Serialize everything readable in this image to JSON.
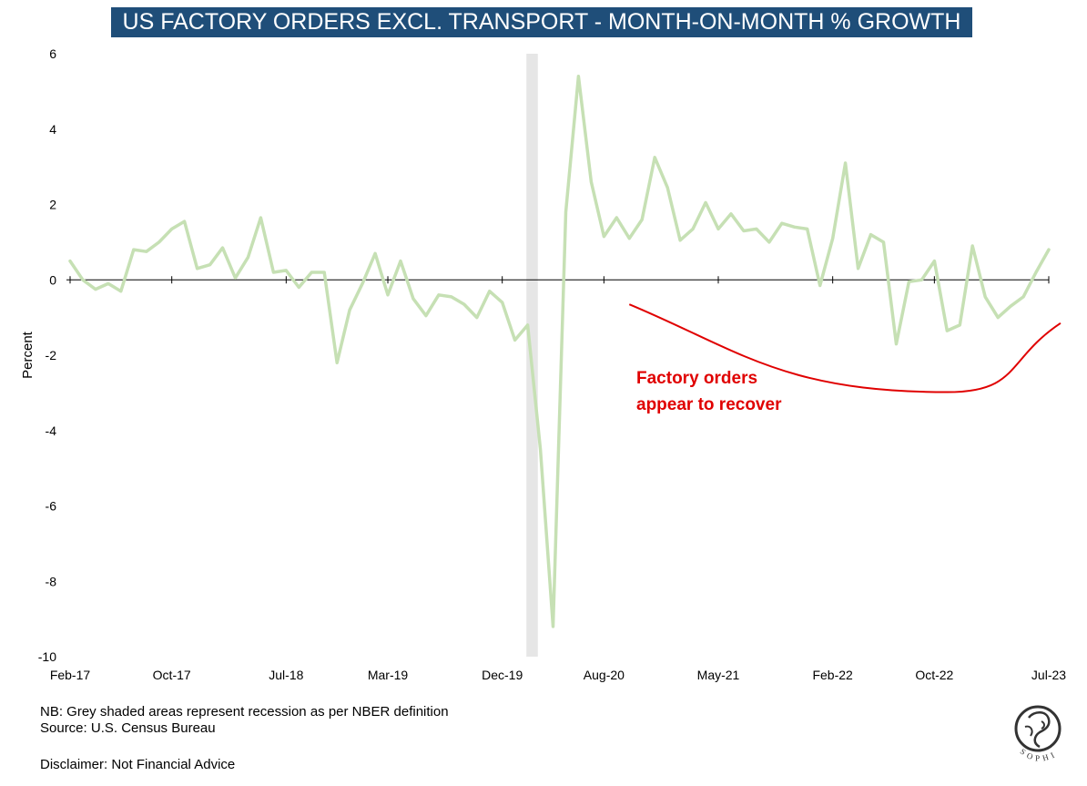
{
  "chart_data": {
    "type": "line",
    "title": "US FACTORY ORDERS EXCL. TRANSPORT - MONTH-ON-MONTH % GROWTH",
    "ylabel": "Percent",
    "xlabel": "",
    "ylim": [
      -10,
      6
    ],
    "y_ticks": [
      "6",
      "4",
      "2",
      "0",
      "-2",
      "-4",
      "-6",
      "-8",
      "-10"
    ],
    "x_ticks": [
      "Feb-17",
      "Oct-17",
      "Jul-18",
      "Mar-19",
      "Dec-19",
      "Aug-20",
      "May-21",
      "Feb-22",
      "Oct-22",
      "Jul-23"
    ],
    "x_tick_month_index": [
      0,
      8,
      17,
      25,
      34,
      42,
      51,
      60,
      68,
      77
    ],
    "recession_shading": {
      "start_month_index": 36,
      "end_month_index": 37,
      "label": "NBER recession"
    },
    "series": [
      {
        "name": "US factory orders excl. transport, MoM % growth",
        "color": "#c6e0b4",
        "start": "Feb-17",
        "values": [
          0.5,
          0.0,
          -0.25,
          -0.1,
          -0.3,
          0.8,
          0.75,
          1.0,
          1.35,
          1.55,
          0.3,
          0.4,
          0.85,
          0.05,
          0.6,
          1.65,
          0.2,
          0.25,
          -0.2,
          0.2,
          0.2,
          -2.2,
          -0.8,
          -0.1,
          0.7,
          -0.4,
          0.5,
          -0.5,
          -0.95,
          -0.4,
          -0.45,
          -0.65,
          -1.0,
          -0.3,
          -0.6,
          -1.6,
          -1.2,
          -4.5,
          -9.2,
          1.8,
          5.4,
          2.6,
          1.15,
          1.65,
          1.1,
          1.6,
          3.25,
          2.45,
          1.05,
          1.35,
          2.05,
          1.35,
          1.75,
          1.3,
          1.35,
          1.0,
          1.5,
          1.4,
          1.35,
          -0.15,
          1.1,
          3.1,
          0.3,
          1.2,
          1.0,
          -1.7,
          -0.05,
          0.0,
          0.5,
          -1.35,
          -1.2,
          0.9,
          -0.45,
          -1.0,
          -0.7,
          -0.45,
          0.2,
          0.8
        ]
      }
    ],
    "annotation": {
      "text_line1": "Factory orders",
      "text_line2": "appear to recover",
      "color": "#e00000",
      "curve_values": [
        {
          "month_index": 44,
          "value": -0.65
        },
        {
          "month_index": 69,
          "value": -2.98
        },
        {
          "month_index": 78,
          "value": -1.15
        }
      ]
    }
  },
  "colors": {
    "title_bg": "#1f4e79",
    "title_text": "#ffffff",
    "series_line": "#c6e0b4",
    "recession_shade": "#e6e6e6",
    "annotation": "#e00000",
    "axis": "#000000"
  },
  "footer": {
    "note": "NB: Grey shaded areas represent recession as per NBER definition",
    "source": "Source: U.S. Census Bureau",
    "disclaimer": "Disclaimer: Not Financial Advice"
  },
  "logo": {
    "icon": "sophia-logo-icon",
    "text": "SOPHIA"
  }
}
